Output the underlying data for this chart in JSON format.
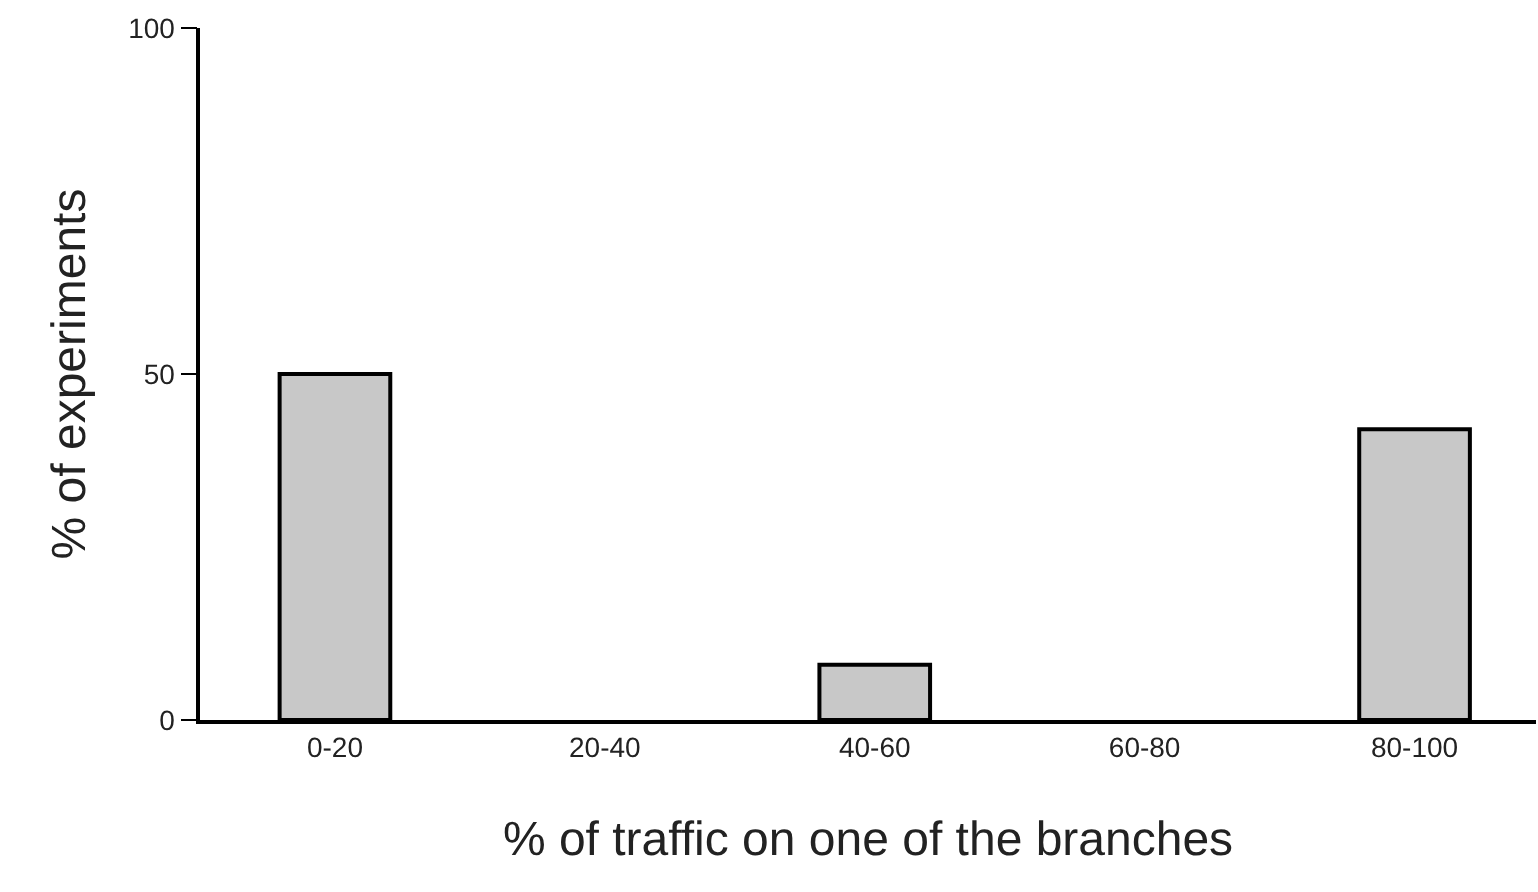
{
  "chart_data": {
    "type": "bar",
    "xlabel": "% of traffic on one of the branches",
    "ylabel": "% of experiments",
    "categories": [
      "0-20",
      "20-40",
      "40-60",
      "60-80",
      "80-100"
    ],
    "values": [
      50,
      0,
      8,
      0,
      42
    ],
    "color": "#c8c8c8",
    "ylim": [
      0,
      100
    ],
    "yticks": [
      0,
      50,
      100
    ],
    "legend": false
  }
}
